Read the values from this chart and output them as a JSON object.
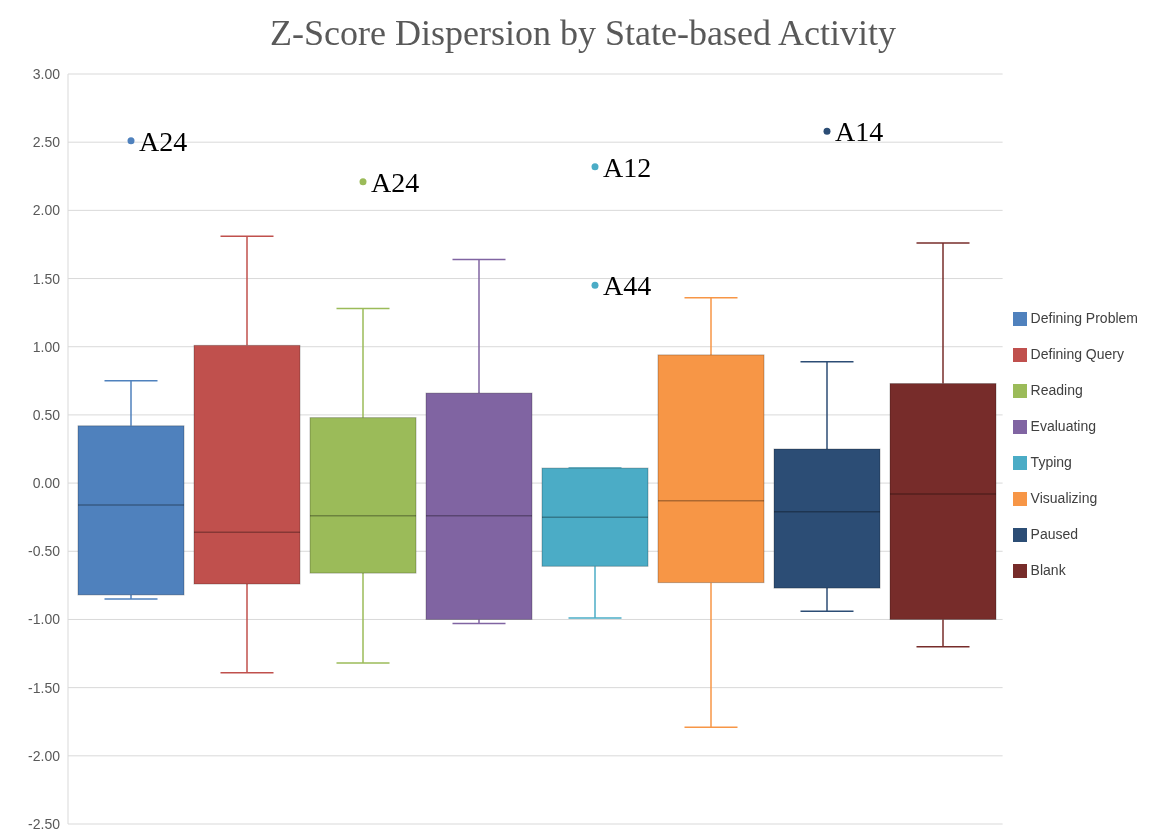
{
  "chart_data": {
    "type": "box",
    "title": "Z-Score Dispersion by State-based Activity",
    "categories": [
      null
    ],
    "series": [
      {
        "name": "Defining Problem",
        "color": "#4f81bd",
        "boxes": [
          {
            "low": -0.85,
            "q1": -0.82,
            "median": -0.16,
            "q3": 0.42,
            "high": 0.75,
            "outliers": [
              2.51
            ]
          }
        ]
      },
      {
        "name": "Defining Query",
        "color": "#c0504d",
        "boxes": [
          {
            "low": -1.39,
            "q1": -0.74,
            "median": -0.36,
            "q3": 1.01,
            "high": 1.81
          }
        ]
      },
      {
        "name": "Reading",
        "color": "#9bbb59",
        "boxes": [
          {
            "low": -1.32,
            "q1": -0.66,
            "median": -0.24,
            "q3": 0.48,
            "high": 1.28,
            "outliers": [
              2.21
            ]
          }
        ]
      },
      {
        "name": "Evaluating",
        "color": "#8064a2",
        "boxes": [
          {
            "low": -1.03,
            "q1": -1.0,
            "median": -0.24,
            "q3": 0.66,
            "high": 1.64
          }
        ]
      },
      {
        "name": "Typing",
        "color": "#4bacc6",
        "boxes": [
          {
            "low": -0.99,
            "q1": -0.61,
            "median": -0.25,
            "q3": 0.11,
            "high": 0.11,
            "outliers": [
              2.32,
              1.45
            ]
          }
        ]
      },
      {
        "name": "Visualizing",
        "color": "#f79646",
        "boxes": [
          {
            "low": -1.79,
            "q1": -0.73,
            "median": -0.13,
            "q3": 0.94,
            "high": 1.36
          }
        ]
      },
      {
        "name": "Paused",
        "color": "#2c4d75",
        "boxes": [
          {
            "low": -0.94,
            "q1": -0.77,
            "median": -0.21,
            "q3": 0.25,
            "high": 0.89,
            "outliers": [
              2.58
            ]
          }
        ]
      },
      {
        "name": "Blank",
        "color": "#772c2a",
        "boxes": [
          {
            "low": -1.2,
            "q1": -1.0,
            "median": -0.08,
            "q3": 0.73,
            "high": 1.76
          }
        ]
      }
    ],
    "annotations": [
      "A24",
      "A24",
      "A12",
      "A44",
      "A14"
    ],
    "ylim": [
      -2.5,
      3
    ],
    "yticks": [
      {
        "value": -2.5,
        "label": "-2.50"
      },
      {
        "value": -2,
        "label": "-2.00"
      },
      {
        "value": -1.5,
        "label": "-1.50"
      },
      {
        "value": -1,
        "label": "-1.00"
      },
      {
        "value": -0.5,
        "label": "-0.50"
      },
      {
        "value": 0,
        "label": "0.00"
      },
      {
        "value": 0.5,
        "label": "0.50"
      },
      {
        "value": 1,
        "label": "1.00"
      },
      {
        "value": 1.5,
        "label": "1.50"
      },
      {
        "value": 2,
        "label": "2.00"
      },
      {
        "value": 2.5,
        "label": "2.50"
      },
      {
        "value": 3,
        "label": "3.00"
      }
    ],
    "grid": "y",
    "legend": "right",
    "tick_labels": "y"
  }
}
